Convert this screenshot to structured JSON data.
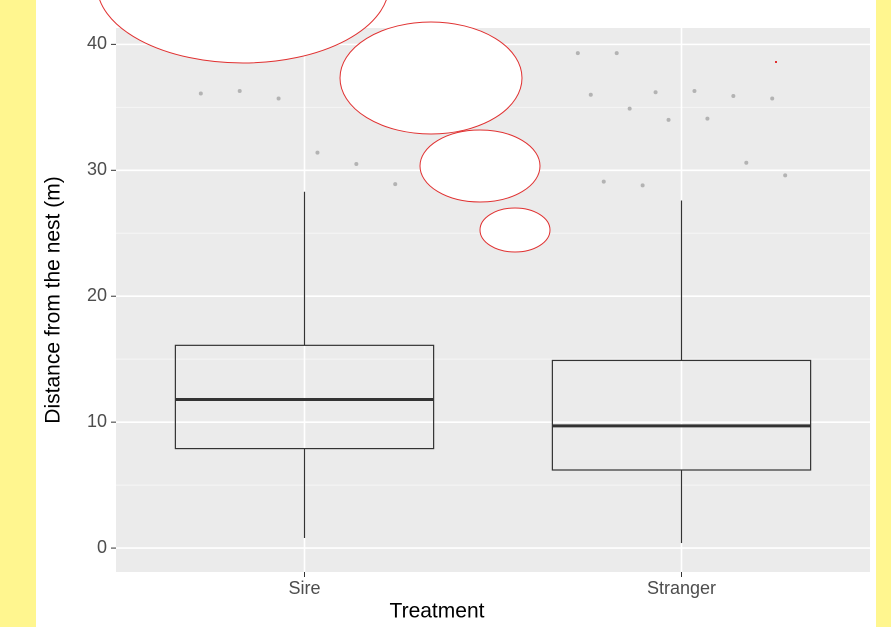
{
  "chart_data": {
    "type": "boxplot",
    "x_label": "Treatment",
    "y_label": "Distance from the nest (m)",
    "categories": [
      "Sire",
      "Stranger"
    ],
    "boxes": [
      {
        "min": 0.8,
        "q1": 7.9,
        "median": 11.8,
        "q3": 16.1,
        "max": 28.3,
        "outliers": [
          36.1,
          36.3,
          35.7,
          31.4,
          30.5,
          28.9
        ]
      },
      {
        "min": 0.4,
        "q1": 6.2,
        "median": 9.7,
        "q3": 14.9,
        "max": 27.6,
        "outliers": [
          39.3,
          39.3,
          36.2,
          36.3,
          35.9,
          35.7,
          36.0,
          34.9,
          34.0,
          34.1,
          30.6,
          29.6,
          29.1,
          28.8
        ]
      }
    ],
    "point_color": "#b3b3b3",
    "ylim": [
      -1.9,
      41.3
    ],
    "yticks": [
      0,
      10,
      20,
      30,
      40
    ],
    "grid": true
  }
}
